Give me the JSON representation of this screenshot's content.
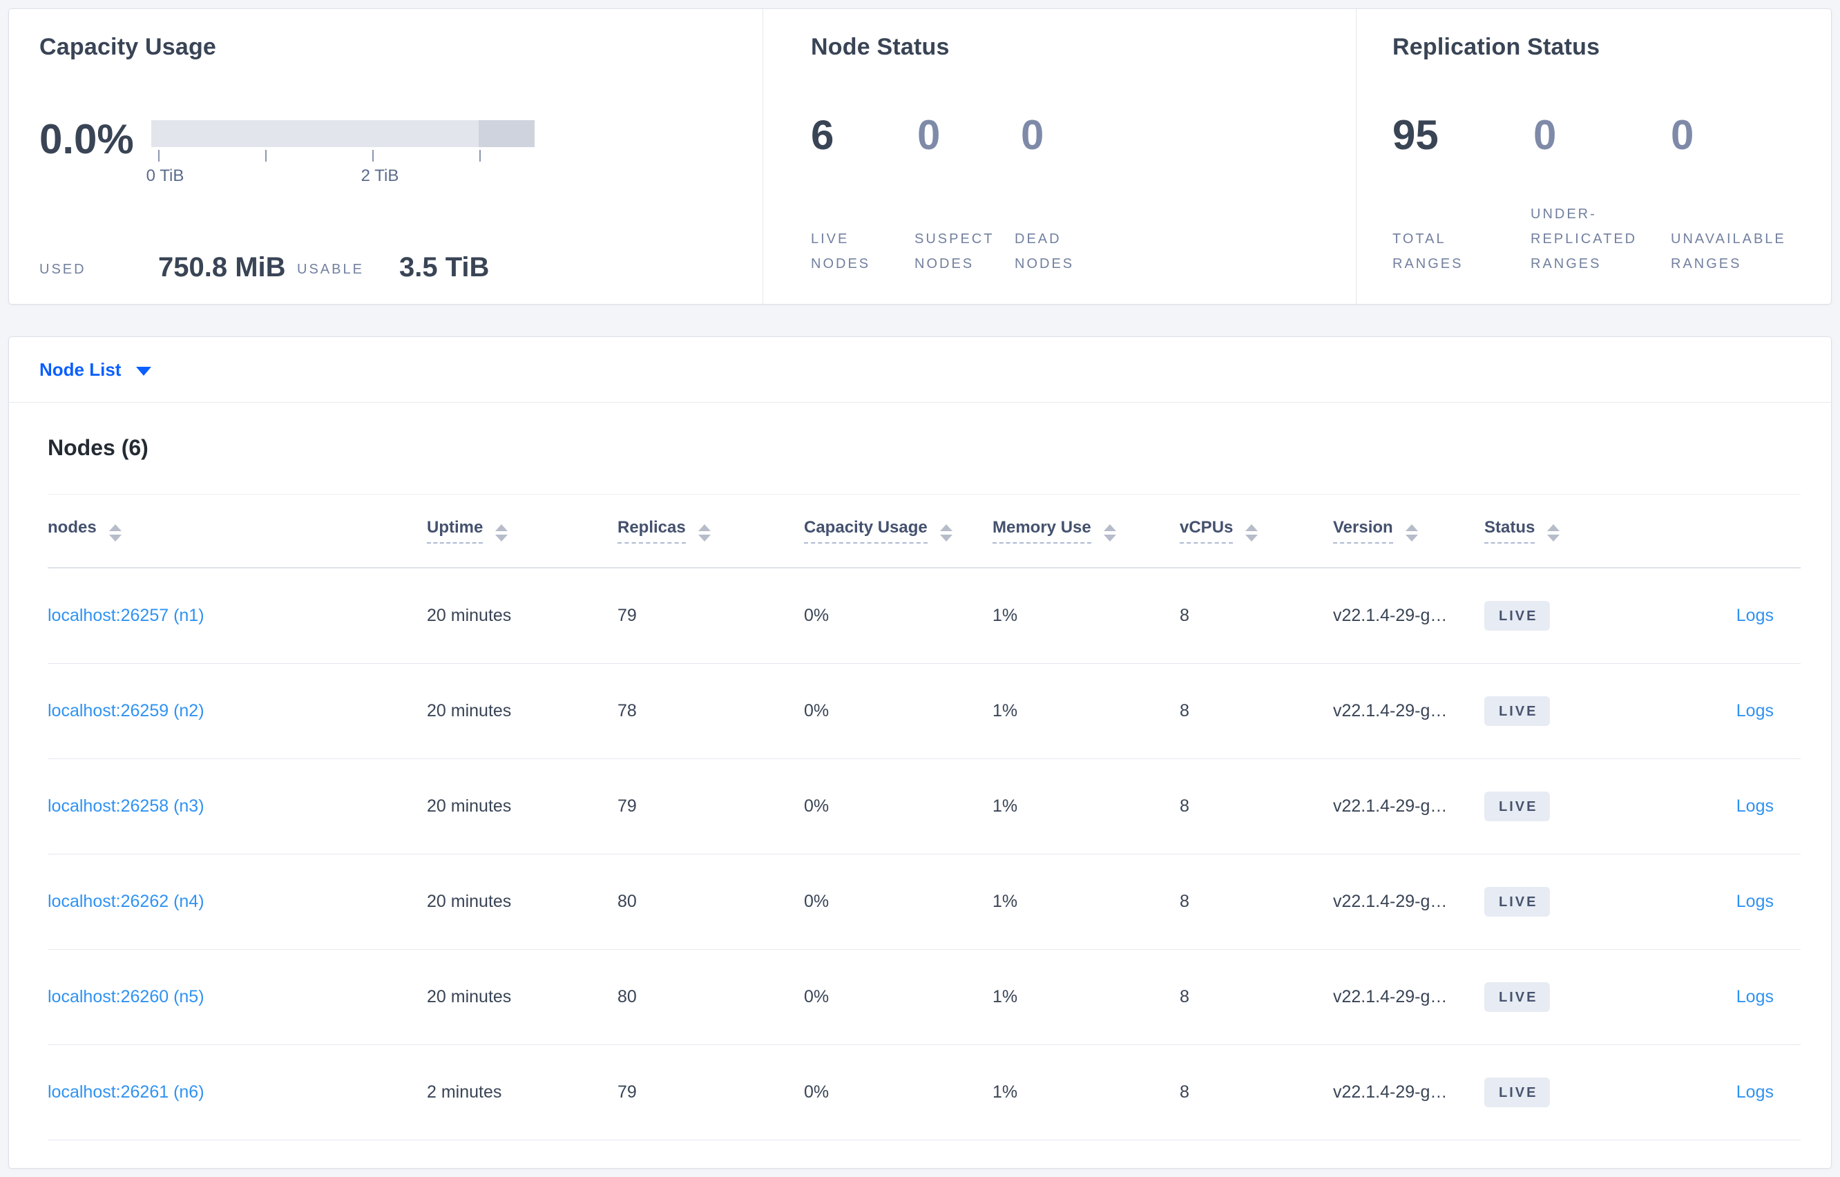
{
  "summary": {
    "capacity": {
      "title": "Capacity Usage",
      "percent": "0.0%",
      "tick_labels": [
        "0 TiB",
        "2 TiB"
      ],
      "used_label": "USED",
      "used_value": "750.8 MiB",
      "usable_label": "USABLE",
      "usable_value": "3.5 TiB",
      "bar": {
        "light_fraction_pct": 85.4,
        "dark_fraction_pct": 14.6,
        "light_color": "#e2e5ec",
        "dark_color": "#ced3dd"
      }
    },
    "node_status": {
      "title": "Node Status",
      "stats": [
        {
          "value": "6",
          "label": "LIVE NODES",
          "emphasized": true
        },
        {
          "value": "0",
          "label": "SUSPECT NODES",
          "emphasized": false
        },
        {
          "value": "0",
          "label": "DEAD NODES",
          "emphasized": false
        }
      ]
    },
    "replication": {
      "title": "Replication Status",
      "stats": [
        {
          "value": "95",
          "label": "TOTAL RANGES",
          "emphasized": true
        },
        {
          "value": "0",
          "label": "UNDER-REPLICATED RANGES",
          "emphasized": false
        },
        {
          "value": "0",
          "label": "UNAVAILABLE RANGES",
          "emphasized": false
        }
      ]
    }
  },
  "node_list": {
    "dropdown_label": "Node List",
    "heading": "Nodes (6)",
    "columns": [
      {
        "label": "nodes",
        "dashed": false
      },
      {
        "label": "Uptime",
        "dashed": true
      },
      {
        "label": "Replicas",
        "dashed": true
      },
      {
        "label": "Capacity Usage",
        "dashed": true
      },
      {
        "label": "Memory Use",
        "dashed": true
      },
      {
        "label": "vCPUs",
        "dashed": true
      },
      {
        "label": "Version",
        "dashed": true
      },
      {
        "label": "Status",
        "dashed": true
      }
    ],
    "rows": [
      {
        "node": "localhost:26257 (n1)",
        "uptime": "20 minutes",
        "replicas": "79",
        "capacity": "0%",
        "memory": "1%",
        "vcpus": "8",
        "version": "v22.1.4-29-g…",
        "status": "LIVE",
        "logs": "Logs"
      },
      {
        "node": "localhost:26259 (n2)",
        "uptime": "20 minutes",
        "replicas": "78",
        "capacity": "0%",
        "memory": "1%",
        "vcpus": "8",
        "version": "v22.1.4-29-g…",
        "status": "LIVE",
        "logs": "Logs"
      },
      {
        "node": "localhost:26258 (n3)",
        "uptime": "20 minutes",
        "replicas": "79",
        "capacity": "0%",
        "memory": "1%",
        "vcpus": "8",
        "version": "v22.1.4-29-g…",
        "status": "LIVE",
        "logs": "Logs"
      },
      {
        "node": "localhost:26262 (n4)",
        "uptime": "20 minutes",
        "replicas": "80",
        "capacity": "0%",
        "memory": "1%",
        "vcpus": "8",
        "version": "v22.1.4-29-g…",
        "status": "LIVE",
        "logs": "Logs"
      },
      {
        "node": "localhost:26260 (n5)",
        "uptime": "20 minutes",
        "replicas": "80",
        "capacity": "0%",
        "memory": "1%",
        "vcpus": "8",
        "version": "v22.1.4-29-g…",
        "status": "LIVE",
        "logs": "Logs"
      },
      {
        "node": "localhost:26261 (n6)",
        "uptime": "2 minutes",
        "replicas": "79",
        "capacity": "0%",
        "memory": "1%",
        "vcpus": "8",
        "version": "v22.1.4-29-g…",
        "status": "LIVE",
        "logs": "Logs"
      }
    ]
  }
}
